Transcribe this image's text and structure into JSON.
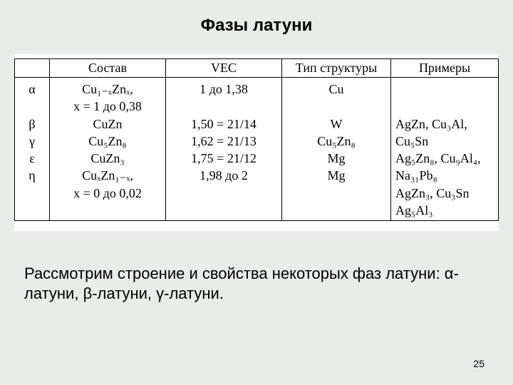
{
  "title": "Фазы латуни",
  "table": {
    "headers": {
      "phase": "",
      "composition": "Состав",
      "vec": "VEC",
      "structure": "Тип структуры",
      "examples": "Примеры"
    },
    "body": {
      "phase": "α\n\nβ\nγ\nε\nη",
      "composition": "Cu₁₋ₓZnₓ,\nx = 1 до 0,38\nCuZn\nCu₅Zn₈\nCuZn₃\nCuₓZn₁₋ₓ,\nx = 0 до 0,02",
      "vec": "1 до 1,38\n\n1,50 = 21/14\n1,62 = 21/13\n1,75 = 21/12\n1,98 до 2",
      "structure": "Cu\n\nW\nCu₅Zn₈\nMg\nMg",
      "examples": "\n\nAgZn, Cu₃Al, Cu₅Sn\nAg₅Zn₈, Cu₉Al₄, Na₃₁Pb₈\nAgZn₃, Cu₃Sn\nAg₅Al₃"
    }
  },
  "body_text": "Рассмотрим строение и свойства некоторых фаз латуни: α-латуни,  β-латуни, γ-латуни.",
  "page_number": "25",
  "colors": {
    "slide_bg": "#e7ede7",
    "table_bg": "#ffffff",
    "border": "#000000",
    "text": "#000000"
  }
}
